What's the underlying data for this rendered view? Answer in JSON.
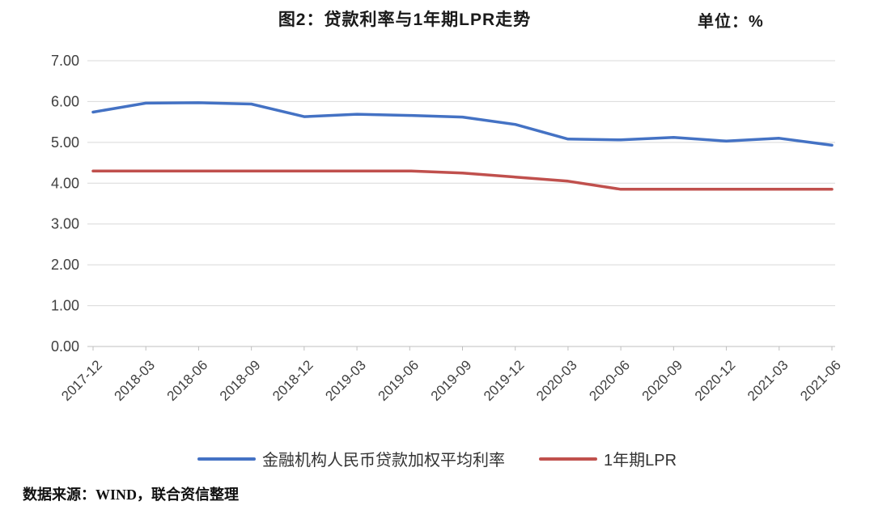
{
  "page": {
    "title": "图2：贷款利率与1年期LPR走势",
    "unit_label": "单位：%",
    "source_note": "数据来源：WIND，联合资信整理"
  },
  "colors": {
    "series_blue": "#4472C4",
    "series_red": "#C0504D",
    "gridline": "#D9D9D9",
    "axis_line": "#BFBFBF",
    "tick_text": "#404040"
  },
  "chart_data": {
    "type": "line",
    "title": "图2：贷款利率与1年期LPR走势",
    "unit": "单位：%",
    "xlabel": "",
    "ylabel": "",
    "categories": [
      "2017-12",
      "2018-03",
      "2018-06",
      "2018-09",
      "2018-12",
      "2019-03",
      "2019-06",
      "2019-09",
      "2019-12",
      "2020-03",
      "2020-06",
      "2020-09",
      "2020-12",
      "2021-03",
      "2021-06"
    ],
    "series": [
      {
        "name": "金融机构人民币贷款加权平均利率",
        "color": "#4472C4",
        "values": [
          5.74,
          5.96,
          5.97,
          5.94,
          5.63,
          5.69,
          5.66,
          5.62,
          5.44,
          5.08,
          5.06,
          5.12,
          5.03,
          5.1,
          4.93
        ]
      },
      {
        "name": "1年期LPR",
        "color": "#C0504D",
        "values": [
          4.3,
          4.3,
          4.3,
          4.3,
          4.3,
          4.3,
          4.3,
          4.25,
          4.15,
          4.05,
          3.85,
          3.85,
          3.85,
          3.85,
          3.85
        ]
      }
    ],
    "ylim": [
      0,
      7
    ],
    "ytick_step": 1,
    "ytick_decimals": 2,
    "grid": true,
    "legend_position": "bottom"
  }
}
